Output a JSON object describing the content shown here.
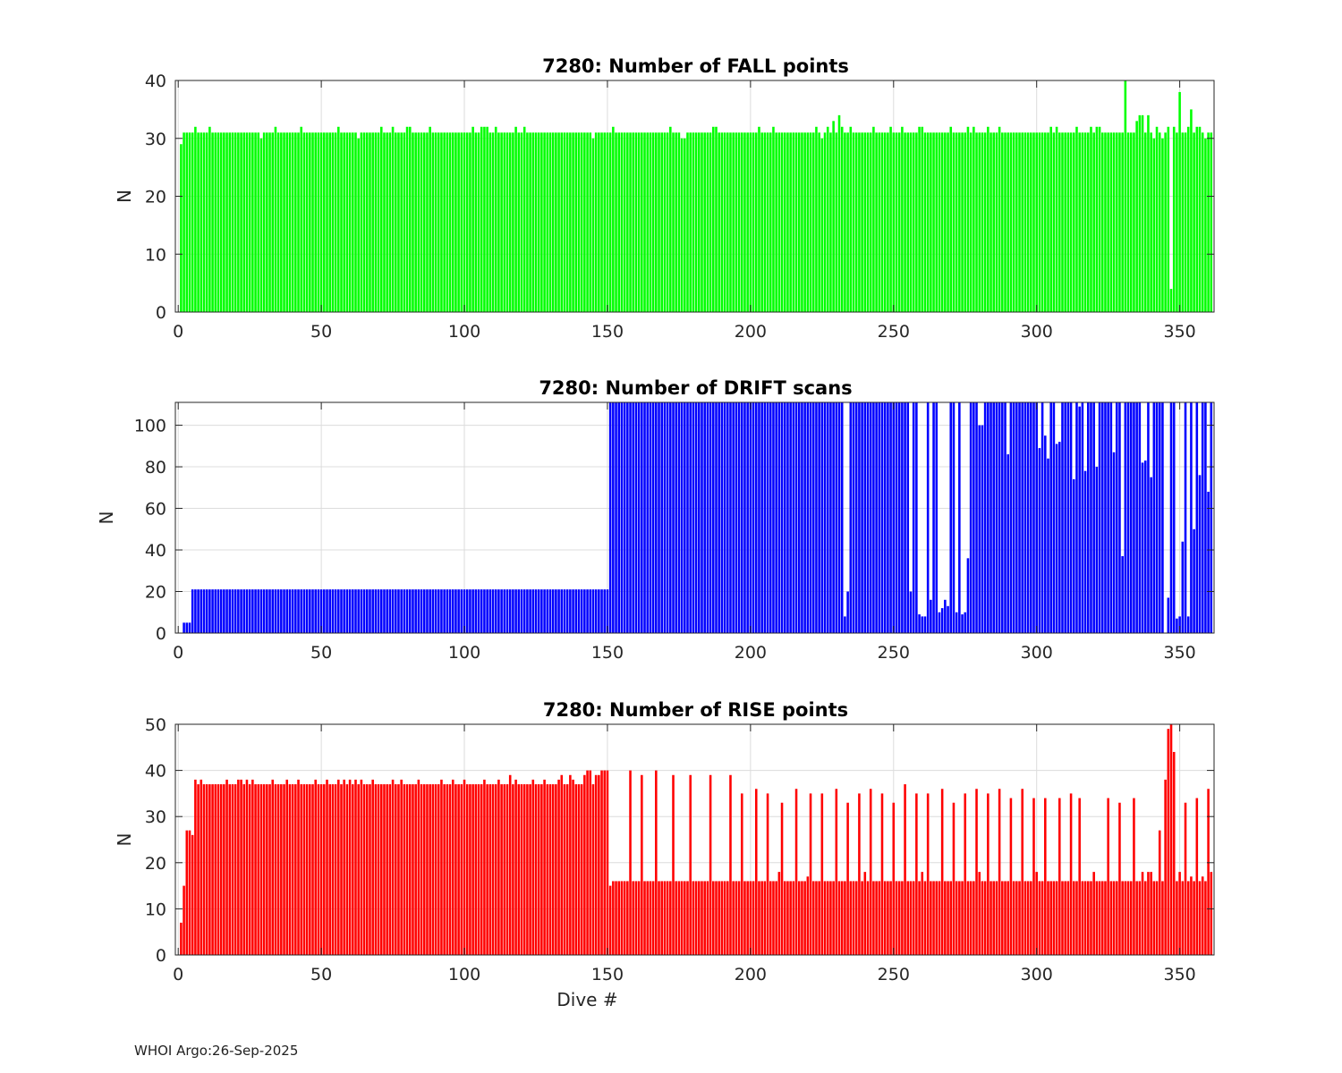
{
  "footer": {
    "source": "WHOI Argo",
    "date": "26-Sep-2025",
    "text": "WHOI Argo:26-Sep-2025"
  },
  "chart_data": [
    {
      "type": "bar",
      "title": "7280: Number of FALL points",
      "xlabel": "",
      "ylabel": "N",
      "xlim": [
        -1,
        362
      ],
      "ylim": [
        0,
        40
      ],
      "xticks": [
        0,
        50,
        100,
        150,
        200,
        250,
        300,
        350
      ],
      "yticks": [
        0,
        10,
        20,
        30,
        40
      ],
      "grid": true,
      "color": "#00ff00",
      "baseline": 31,
      "x_start": 1,
      "x_end": 361,
      "overrides": {
        "1": 29,
        "2": 31,
        "3": 31,
        "6": 32,
        "11": 32,
        "20": 31,
        "29": 30,
        "34": 32,
        "40": 31,
        "43": 32,
        "47": 31,
        "48": 31,
        "56": 32,
        "63": 30,
        "71": 32,
        "75": 32,
        "77": 31,
        "80": 32,
        "81": 32,
        "85": 31,
        "88": 32,
        "103": 32,
        "106": 32,
        "107": 32,
        "108": 32,
        "111": 32,
        "118": 32,
        "121": 32,
        "133": 31,
        "143": 31,
        "145": 30,
        "152": 32,
        "162": 31,
        "165": 31,
        "172": 32,
        "176": 30,
        "177": 30,
        "180": 31,
        "187": 32,
        "188": 32,
        "201": 31,
        "203": 32,
        "208": 32,
        "220": 31,
        "221": 31,
        "223": 32,
        "225": 30,
        "226": 31,
        "227": 32,
        "229": 33,
        "230": 31,
        "231": 34,
        "232": 32,
        "235": 32,
        "243": 32,
        "249": 32,
        "253": 32,
        "256": 31,
        "257": 31,
        "259": 32,
        "260": 32,
        "266": 31,
        "270": 32,
        "276": 32,
        "278": 32,
        "283": 32,
        "287": 32,
        "295": 31,
        "301": 31,
        "305": 32,
        "307": 32,
        "314": 32,
        "319": 32,
        "321": 32,
        "322": 32,
        "327": 31,
        "331": 40,
        "333": 31,
        "335": 33,
        "336": 34,
        "337": 34,
        "339": 34,
        "341": 30,
        "342": 32,
        "344": 30,
        "345": 31,
        "346": 32,
        "347": 4,
        "348": 32,
        "350": 38,
        "352": 31,
        "353": 32,
        "354": 35,
        "355": 31,
        "356": 32,
        "357": 32,
        "359": 30,
        "360": 31,
        "361": 31
      },
      "values_note": "Bar heights per dive #1-361; bars not listed in overrides equal baseline"
    },
    {
      "type": "bar",
      "title": "7280: Number of DRIFT scans",
      "xlabel": "",
      "ylabel": "N",
      "xlim": [
        -1,
        362
      ],
      "ylim": [
        0,
        111
      ],
      "xticks": [
        0,
        50,
        100,
        150,
        200,
        250,
        300,
        350
      ],
      "yticks": [
        0,
        20,
        40,
        60,
        80,
        100
      ],
      "grid": true,
      "color": "#0000ff",
      "segments": [
        {
          "from": 1,
          "to": 1,
          "value": 0
        },
        {
          "from": 2,
          "to": 4,
          "value": 5
        },
        {
          "from": 5,
          "to": 150,
          "value": 21
        },
        {
          "from": 151,
          "to": 361,
          "value": 111
        }
      ],
      "overrides": {
        "233": 8,
        "234": 20,
        "256": 20,
        "259": 9,
        "260": 8,
        "261": 8,
        "263": 16,
        "264": 111,
        "266": 10,
        "267": 12,
        "268": 16,
        "269": 13,
        "270": 111,
        "271": 111,
        "272": 10,
        "274": 9,
        "275": 10,
        "276": 36,
        "277": 111,
        "279": 111,
        "280": 100,
        "281": 100,
        "282": 111,
        "283": 111,
        "284": 111,
        "285": 111,
        "286": 111,
        "287": 111,
        "288": 111,
        "289": 111,
        "290": 86,
        "291": 111,
        "292": 111,
        "293": 111,
        "294": 111,
        "295": 111,
        "296": 111,
        "297": 111,
        "298": 111,
        "299": 111,
        "300": 111,
        "301": 89,
        "302": 111,
        "303": 95,
        "304": 84,
        "305": 111,
        "306": 111,
        "307": 91,
        "308": 92,
        "309": 111,
        "310": 111,
        "311": 111,
        "312": 111,
        "313": 74,
        "314": 111,
        "315": 109,
        "316": 111,
        "317": 78,
        "318": 111,
        "319": 111,
        "320": 111,
        "321": 80,
        "322": 111,
        "323": 111,
        "324": 111,
        "325": 111,
        "326": 111,
        "327": 87,
        "328": 111,
        "329": 111,
        "330": 37,
        "331": 111,
        "332": 111,
        "333": 111,
        "334": 111,
        "335": 111,
        "336": 111,
        "337": 82,
        "338": 83,
        "339": 111,
        "340": 75,
        "341": 111,
        "342": 111,
        "343": 111,
        "344": 111,
        "345": 0,
        "346": 17,
        "347": 111,
        "348": 111,
        "349": 7,
        "350": 8,
        "351": 44,
        "352": 111,
        "353": 8,
        "354": 111,
        "355": 50,
        "356": 111,
        "357": 76,
        "358": 111,
        "359": 111,
        "360": 68,
        "361": 111
      },
      "values_note": "Bars clipped at the upper axis limit (111) are plotted at the limit"
    },
    {
      "type": "bar",
      "title": "7280: Number of RISE points",
      "xlabel": "Dive #",
      "ylabel": "N",
      "xlim": [
        -1,
        362
      ],
      "ylim": [
        0,
        50
      ],
      "xticks": [
        0,
        50,
        100,
        150,
        200,
        250,
        300,
        350
      ],
      "yticks": [
        0,
        10,
        20,
        30,
        40,
        50
      ],
      "grid": true,
      "color": "#ff0000",
      "segments": [
        {
          "from": 1,
          "to": 150,
          "value": 37
        },
        {
          "from": 151,
          "to": 361,
          "value": 16
        }
      ],
      "overrides": {
        "1": 7,
        "2": 15,
        "3": 27,
        "4": 27,
        "5": 26,
        "6": 38,
        "7": 37,
        "8": 38,
        "17": 38,
        "21": 38,
        "22": 38,
        "24": 38,
        "26": 38,
        "33": 38,
        "38": 38,
        "42": 38,
        "48": 38,
        "52": 38,
        "56": 38,
        "58": 38,
        "60": 38,
        "62": 38,
        "64": 38,
        "68": 38,
        "75": 38,
        "78": 38,
        "84": 38,
        "92": 38,
        "96": 38,
        "100": 38,
        "107": 38,
        "112": 38,
        "116": 39,
        "118": 38,
        "124": 38,
        "128": 38,
        "133": 38,
        "134": 39,
        "137": 39,
        "138": 38,
        "142": 39,
        "143": 40,
        "144": 40,
        "146": 39,
        "147": 39,
        "148": 40,
        "149": 40,
        "150": 40,
        "151": 15,
        "158": 40,
        "162": 39,
        "167": 40,
        "173": 39,
        "179": 39,
        "186": 39,
        "193": 39,
        "197": 35,
        "202": 36,
        "206": 35,
        "211": 33,
        "216": 36,
        "221": 35,
        "225": 35,
        "230": 36,
        "234": 33,
        "238": 35,
        "242": 36,
        "246": 35,
        "250": 33,
        "254": 37,
        "258": 35,
        "262": 35,
        "267": 36,
        "271": 33,
        "275": 35,
        "279": 36,
        "283": 35,
        "287": 36,
        "291": 34,
        "295": 36,
        "299": 34,
        "303": 34,
        "308": 34,
        "312": 35,
        "315": 34,
        "320": 18,
        "325": 34,
        "329": 33,
        "334": 34,
        "337": 18,
        "339": 18,
        "343": 27,
        "345": 38,
        "346": 49,
        "347": 50,
        "348": 44,
        "352": 33,
        "354": 17,
        "356": 34,
        "358": 17,
        "360": 36,
        "361": 18,
        "200": 16,
        "210": 18,
        "220": 17,
        "240": 18,
        "260": 18,
        "280": 18,
        "300": 18,
        "340": 18,
        "350": 18
      },
      "values_note": "Bar heights per dive #1-361; non-listed bars equal their segment value"
    }
  ]
}
